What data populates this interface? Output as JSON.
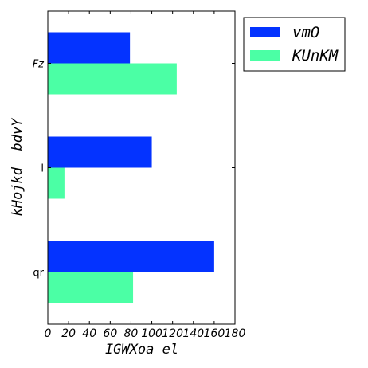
{
  "chart_data": {
    "type": "bar",
    "orientation": "horizontal",
    "categories": [
      "qr",
      "l",
      "Fz"
    ],
    "series": [
      {
        "name": "vmO",
        "color": "#0433ff",
        "values": [
          160,
          100,
          79
        ]
      },
      {
        "name": "KUnKM",
        "color": "#4bffa5",
        "values": [
          82,
          16,
          124
        ]
      }
    ],
    "xlabel": "IGWXoa el",
    "ylabel": "kHojkd  bdvY",
    "xlim": [
      0,
      180
    ],
    "xticks": [
      0,
      20,
      40,
      60,
      80,
      100,
      120,
      140,
      160,
      180
    ],
    "grid": false,
    "legend": "outside-top-right"
  }
}
